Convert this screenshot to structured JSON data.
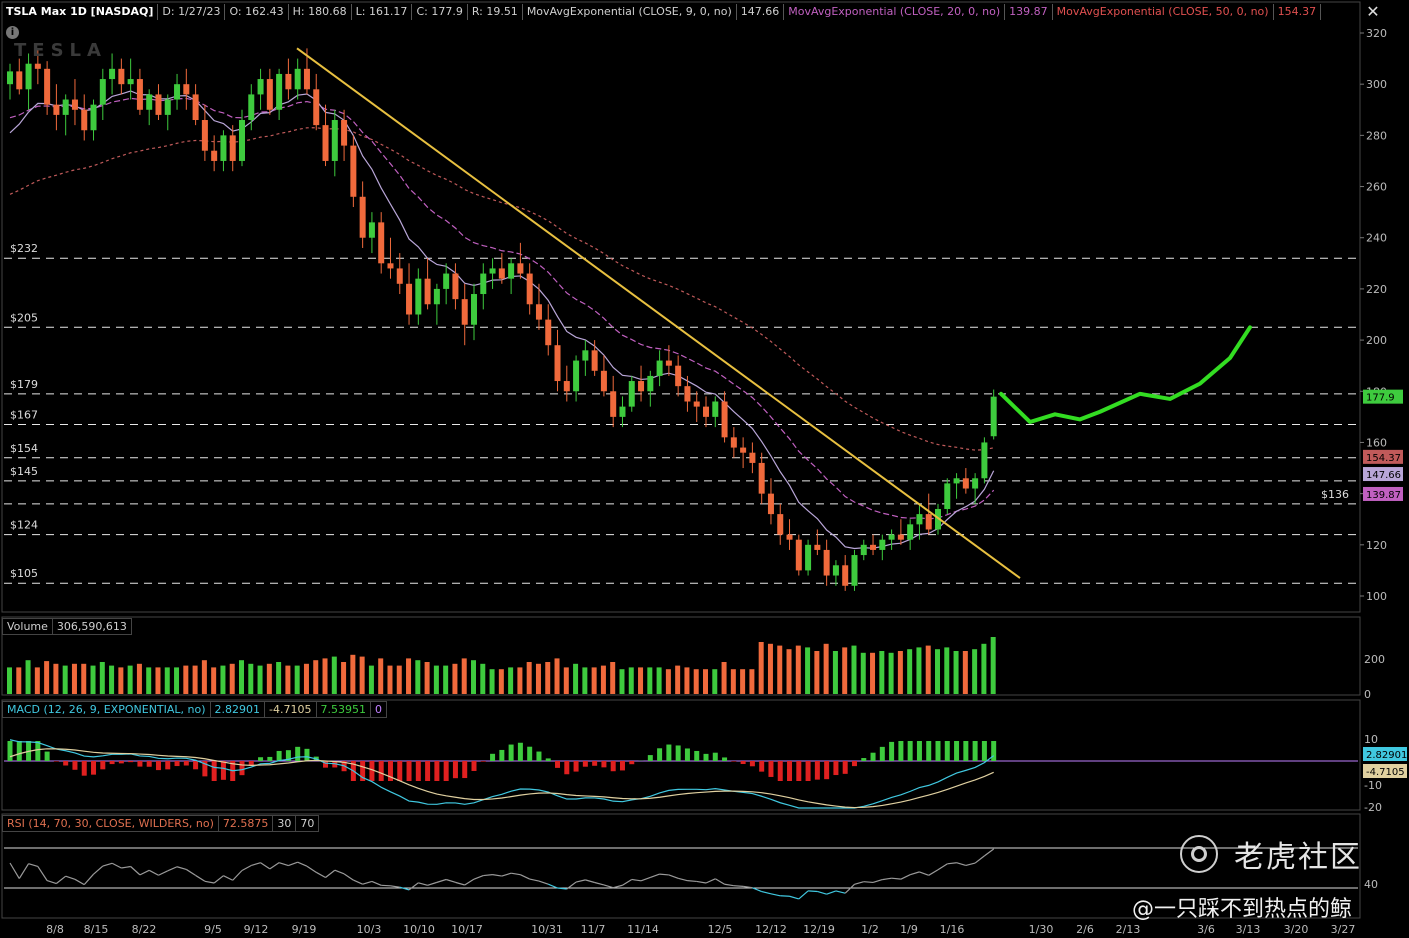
{
  "header": {
    "symbol": "TSLA Max 1D [NASDAQ]",
    "date": "D: 1/27/23",
    "open": "O: 162.43",
    "high": "H: 180.68",
    "low": "L: 161.17",
    "close": "C: 177.9",
    "range": "R: 19.51",
    "ema9_label": "MovAvgExponential (CLOSE, 9, 0, no)",
    "ema9_value": "147.66",
    "ema20_label": "MovAvgExponential (CLOSE, 20, 0, no)",
    "ema20_value": "139.87",
    "ema50_label": "MovAvgExponential (CLOSE, 50, 0, no)",
    "ema50_value": "154.37"
  },
  "close_button": "✕",
  "info_button": "i",
  "watermark": "TESLA",
  "volume_panel": {
    "label": "Volume",
    "value": "306,590,613"
  },
  "macd_panel": {
    "label": "MACD (12, 26, 9, EXPONENTIAL, no)",
    "value": "2.82901",
    "avg": "-4.7105",
    "diff": "7.53951",
    "zero": "0"
  },
  "rsi_panel": {
    "label": "RSI (14, 70, 30, CLOSE, WILDERS, no)",
    "value": "72.5875",
    "low": "30",
    "high": "70"
  },
  "brand": "老虎社区",
  "author": "@一只踩不到热点的鲸",
  "colors": {
    "up": "#3ecb3e",
    "down": "#f06a3c",
    "ema9": "#b9a6d8",
    "ema20": "#c060c0",
    "ema50": "#c05a5a",
    "trendline": "#e8c040",
    "projection": "#33dd22",
    "macd_line": "#40c8e0",
    "macd_avg": "#e0d0a0",
    "rsi": "#9a9a9a"
  },
  "chart_data": {
    "type": "candlestick",
    "y_axis": {
      "min": 95,
      "max": 322,
      "ticks": [
        100,
        120,
        140,
        160,
        180,
        200,
        220,
        240,
        260,
        280,
        300,
        320
      ]
    },
    "x_tick_labels": [
      "8/8",
      "8/15",
      "8/22",
      "9/5",
      "9/12",
      "9/19",
      "10/3",
      "10/10",
      "10/17",
      "10/31",
      "11/7",
      "11/14",
      "12/5",
      "12/12",
      "12/19",
      "1/2",
      "1/9",
      "1/16",
      "1/30",
      "2/6",
      "2/13",
      "3/6",
      "3/13",
      "3/20",
      "3/27"
    ],
    "level_lines": [
      {
        "label": "$232",
        "value": 232
      },
      {
        "label": "$205",
        "value": 205
      },
      {
        "label": "$179",
        "value": 179
      },
      {
        "label": "$167",
        "value": 167
      },
      {
        "label": "$154",
        "value": 154
      },
      {
        "label": "$145",
        "value": 145
      },
      {
        "label": "$136",
        "value": 136
      },
      {
        "label": "$124",
        "value": 124
      },
      {
        "label": "$105",
        "value": 105
      }
    ],
    "price_tags": [
      {
        "text": "177.9",
        "value": 177.9,
        "color": "#3ecb3e"
      },
      {
        "text": "154.37",
        "value": 154.37,
        "color": "#c05a5a"
      },
      {
        "text": "147.66",
        "value": 147.66,
        "color": "#b9a6d8"
      },
      {
        "text": "139.87",
        "value": 139.87,
        "color": "#c060c0"
      }
    ],
    "trendline": {
      "from": {
        "date": "9/19",
        "price": 314
      },
      "to": {
        "date": "2/3",
        "price": 107
      }
    },
    "projection": [
      {
        "date": "1/27",
        "price": 179
      },
      {
        "date": "1/31",
        "price": 168
      },
      {
        "date": "2/2",
        "price": 171
      },
      {
        "date": "2/6",
        "price": 169
      },
      {
        "date": "2/9",
        "price": 172
      },
      {
        "date": "2/14",
        "price": 179
      },
      {
        "date": "2/21",
        "price": 177
      },
      {
        "date": "3/1",
        "price": 183
      },
      {
        "date": "3/8",
        "price": 193
      },
      {
        "date": "3/14",
        "price": 205
      }
    ],
    "volume_axis": {
      "ticks": [
        0,
        200
      ]
    },
    "macd_axis": {
      "ticks": [
        -20,
        -10,
        10
      ]
    },
    "rsi_axis": {
      "ticks": [
        40
      ]
    },
    "candles": [
      [
        300,
        308,
        294,
        305
      ],
      [
        305,
        310,
        296,
        298
      ],
      [
        298,
        312,
        290,
        308
      ],
      [
        308,
        314,
        300,
        306
      ],
      [
        306,
        309,
        288,
        292
      ],
      [
        292,
        300,
        282,
        288
      ],
      [
        288,
        296,
        280,
        294
      ],
      [
        294,
        302,
        284,
        290
      ],
      [
        290,
        296,
        278,
        282
      ],
      [
        282,
        294,
        278,
        292
      ],
      [
        292,
        306,
        286,
        302
      ],
      [
        302,
        312,
        296,
        306
      ],
      [
        306,
        310,
        296,
        300
      ],
      [
        300,
        310,
        294,
        302
      ],
      [
        302,
        306,
        288,
        290
      ],
      [
        290,
        298,
        284,
        296
      ],
      [
        296,
        300,
        286,
        288
      ],
      [
        288,
        296,
        282,
        294
      ],
      [
        294,
        304,
        290,
        300
      ],
      [
        300,
        306,
        290,
        296
      ],
      [
        296,
        300,
        284,
        286
      ],
      [
        286,
        292,
        270,
        274
      ],
      [
        274,
        280,
        266,
        270
      ],
      [
        270,
        282,
        266,
        280
      ],
      [
        280,
        284,
        266,
        270
      ],
      [
        270,
        290,
        268,
        286
      ],
      [
        286,
        300,
        282,
        296
      ],
      [
        296,
        306,
        290,
        302
      ],
      [
        302,
        306,
        288,
        290
      ],
      [
        290,
        306,
        286,
        304
      ],
      [
        304,
        310,
        294,
        298
      ],
      [
        298,
        310,
        294,
        306
      ],
      [
        306,
        314,
        296,
        298
      ],
      [
        298,
        304,
        282,
        284
      ],
      [
        284,
        292,
        268,
        270
      ],
      [
        270,
        290,
        264,
        286
      ],
      [
        286,
        290,
        270,
        276
      ],
      [
        276,
        280,
        252,
        256
      ],
      [
        256,
        262,
        236,
        240
      ],
      [
        240,
        250,
        234,
        246
      ],
      [
        246,
        250,
        226,
        230
      ],
      [
        230,
        240,
        224,
        228
      ],
      [
        228,
        234,
        218,
        222
      ],
      [
        222,
        230,
        206,
        210
      ],
      [
        210,
        228,
        206,
        224
      ],
      [
        224,
        232,
        212,
        214
      ],
      [
        214,
        222,
        206,
        220
      ],
      [
        220,
        230,
        214,
        226
      ],
      [
        226,
        230,
        212,
        216
      ],
      [
        216,
        222,
        198,
        206
      ],
      [
        206,
        222,
        200,
        218
      ],
      [
        218,
        230,
        212,
        226
      ],
      [
        226,
        232,
        220,
        228
      ],
      [
        228,
        234,
        222,
        224
      ],
      [
        224,
        232,
        218,
        230
      ],
      [
        230,
        238,
        224,
        226
      ],
      [
        226,
        230,
        210,
        214
      ],
      [
        214,
        222,
        204,
        208
      ],
      [
        208,
        214,
        194,
        198
      ],
      [
        198,
        204,
        180,
        184
      ],
      [
        184,
        190,
        176,
        180
      ],
      [
        180,
        194,
        176,
        192
      ],
      [
        192,
        200,
        186,
        196
      ],
      [
        196,
        200,
        186,
        188
      ],
      [
        188,
        194,
        178,
        180
      ],
      [
        180,
        186,
        166,
        170
      ],
      [
        170,
        178,
        166,
        174
      ],
      [
        174,
        186,
        172,
        184
      ],
      [
        184,
        190,
        176,
        180
      ],
      [
        180,
        188,
        174,
        186
      ],
      [
        186,
        196,
        182,
        192
      ],
      [
        192,
        198,
        186,
        190
      ],
      [
        190,
        194,
        178,
        182
      ],
      [
        182,
        186,
        172,
        176
      ],
      [
        176,
        180,
        168,
        174
      ],
      [
        174,
        178,
        166,
        170
      ],
      [
        170,
        178,
        166,
        176
      ],
      [
        176,
        180,
        160,
        162
      ],
      [
        162,
        166,
        154,
        158
      ],
      [
        158,
        162,
        150,
        156
      ],
      [
        156,
        160,
        148,
        152
      ],
      [
        152,
        156,
        136,
        140
      ],
      [
        140,
        146,
        128,
        132
      ],
      [
        132,
        136,
        120,
        124
      ],
      [
        124,
        130,
        118,
        122
      ],
      [
        122,
        124,
        108,
        110
      ],
      [
        110,
        122,
        108,
        120
      ],
      [
        120,
        126,
        116,
        118
      ],
      [
        118,
        122,
        104,
        108
      ],
      [
        108,
        114,
        104,
        112
      ],
      [
        112,
        116,
        102,
        104
      ],
      [
        104,
        118,
        102,
        116
      ],
      [
        116,
        122,
        114,
        120
      ],
      [
        120,
        124,
        116,
        118
      ],
      [
        118,
        124,
        114,
        122
      ],
      [
        122,
        126,
        118,
        124
      ],
      [
        124,
        130,
        120,
        122
      ],
      [
        122,
        130,
        118,
        128
      ],
      [
        128,
        136,
        122,
        132
      ],
      [
        132,
        140,
        124,
        126
      ],
      [
        126,
        136,
        124,
        134
      ],
      [
        134,
        146,
        132,
        144
      ],
      [
        144,
        148,
        138,
        146
      ],
      [
        146,
        150,
        140,
        142
      ],
      [
        142,
        148,
        136,
        146
      ],
      [
        146,
        162,
        144,
        160
      ],
      [
        162.43,
        180.68,
        161.17,
        177.9
      ]
    ]
  }
}
